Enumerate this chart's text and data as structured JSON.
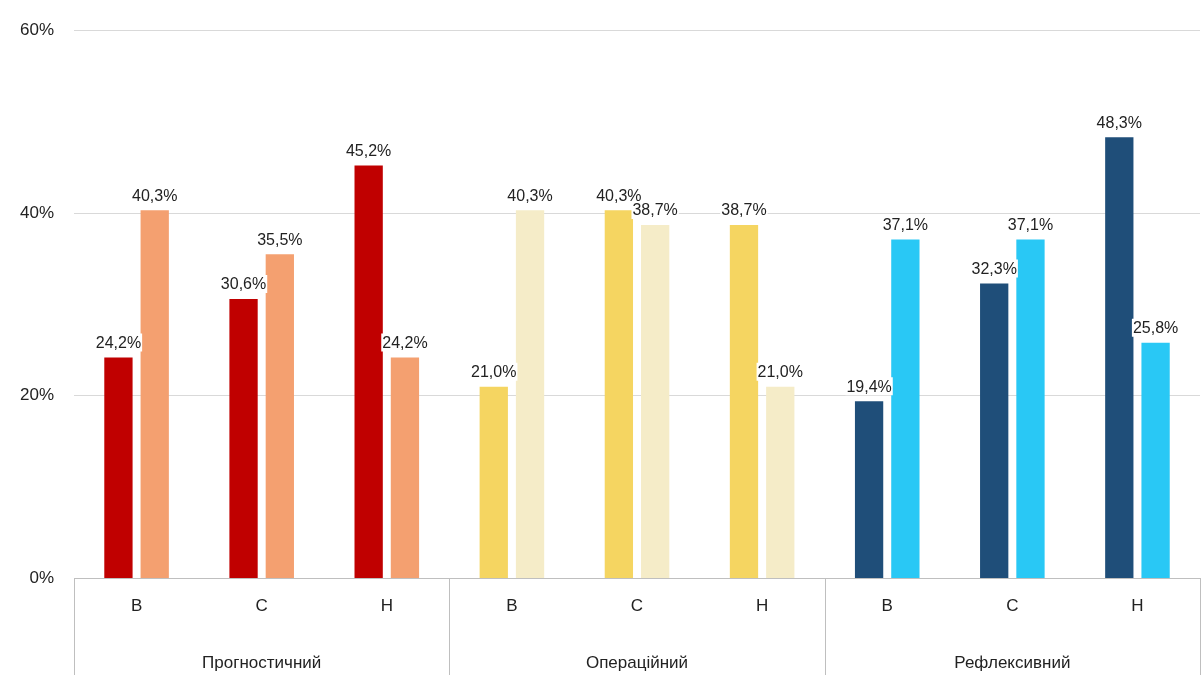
{
  "chart_data": {
    "type": "bar",
    "categories": [
      "В",
      "С",
      "Н",
      "В",
      "С",
      "Н",
      "В",
      "С",
      "Н"
    ],
    "series": [
      {
        "colors": [
          "#c00000",
          "#c00000",
          "#c00000",
          "#f5d561",
          "#f5d561",
          "#f5d561",
          "#1f4e79",
          "#1f4e79",
          "#1f4e79"
        ],
        "values": [
          24.2,
          30.6,
          45.2,
          21.0,
          40.3,
          38.7,
          19.4,
          32.3,
          48.3
        ],
        "value_labels": [
          "24,2%",
          "30,6%",
          "45,2%",
          "21,0%",
          "40,3%",
          "38,7%",
          "19,4%",
          "32,3%",
          "48,3%"
        ]
      },
      {
        "colors": [
          "#f4a070",
          "#f4a070",
          "#f4a070",
          "#f5ecc8",
          "#f5ecc8",
          "#f5ecc8",
          "#29c8f5",
          "#29c8f5",
          "#29c8f5"
        ],
        "values": [
          40.3,
          35.5,
          24.2,
          40.3,
          38.7,
          21.0,
          37.1,
          37.1,
          25.8
        ],
        "value_labels": [
          "40,3%",
          "35,5%",
          "24,2%",
          "40,3%",
          "38,7%",
          "21,0%",
          "37,1%",
          "37,1%",
          "25,8%"
        ]
      }
    ],
    "annotations": [
      "Прогностичний",
      "Операційний",
      "Рефлексивний"
    ],
    "ylim": [
      0,
      60
    ],
    "yticks": [
      {
        "value": 0,
        "label": "0%"
      },
      {
        "value": 20,
        "label": "20%"
      },
      {
        "value": 40,
        "label": "40%"
      },
      {
        "value": 60,
        "label": "60%"
      }
    ],
    "grid": "y",
    "legend": false
  }
}
